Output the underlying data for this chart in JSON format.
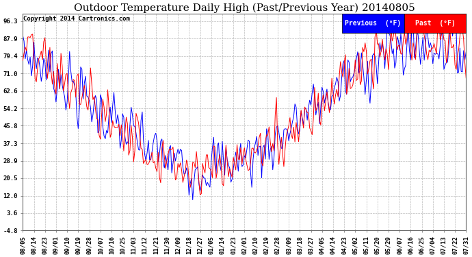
{
  "title": "Outdoor Temperature Daily High (Past/Previous Year) 20140805",
  "copyright": "Copyright 2014 Cartronics.com",
  "legend_previous_label": "Previous  (°F)",
  "legend_past_label": "Past  (°F)",
  "previous_color": "#0000ff",
  "past_color": "#ff0000",
  "background_color": "#ffffff",
  "plot_bg_color": "#ffffff",
  "grid_color": "#aaaaaa",
  "ytick_labels": [
    "96.3",
    "87.9",
    "79.4",
    "71.0",
    "62.6",
    "54.2",
    "45.8",
    "37.3",
    "28.9",
    "20.5",
    "12.0",
    "3.6",
    "-4.8"
  ],
  "ytick_values": [
    96.3,
    87.9,
    79.4,
    71.0,
    62.6,
    54.2,
    45.8,
    37.3,
    28.9,
    20.5,
    12.0,
    3.6,
    -4.8
  ],
  "ylim": [
    -4.8,
    100.0
  ],
  "xtick_labels": [
    "08/05",
    "08/14",
    "08/23",
    "09/01",
    "09/10",
    "09/19",
    "09/28",
    "10/07",
    "10/16",
    "10/25",
    "11/03",
    "11/12",
    "11/21",
    "11/30",
    "12/09",
    "12/18",
    "12/27",
    "01/05",
    "01/14",
    "01/23",
    "02/01",
    "02/10",
    "02/19",
    "02/28",
    "03/09",
    "03/18",
    "03/27",
    "04/05",
    "04/14",
    "04/23",
    "05/02",
    "05/11",
    "05/20",
    "05/29",
    "06/07",
    "06/16",
    "06/25",
    "07/04",
    "07/13",
    "07/22",
    "07/31"
  ],
  "title_fontsize": 11,
  "copyright_fontsize": 6.5,
  "tick_fontsize": 6.5,
  "legend_fontsize": 7
}
